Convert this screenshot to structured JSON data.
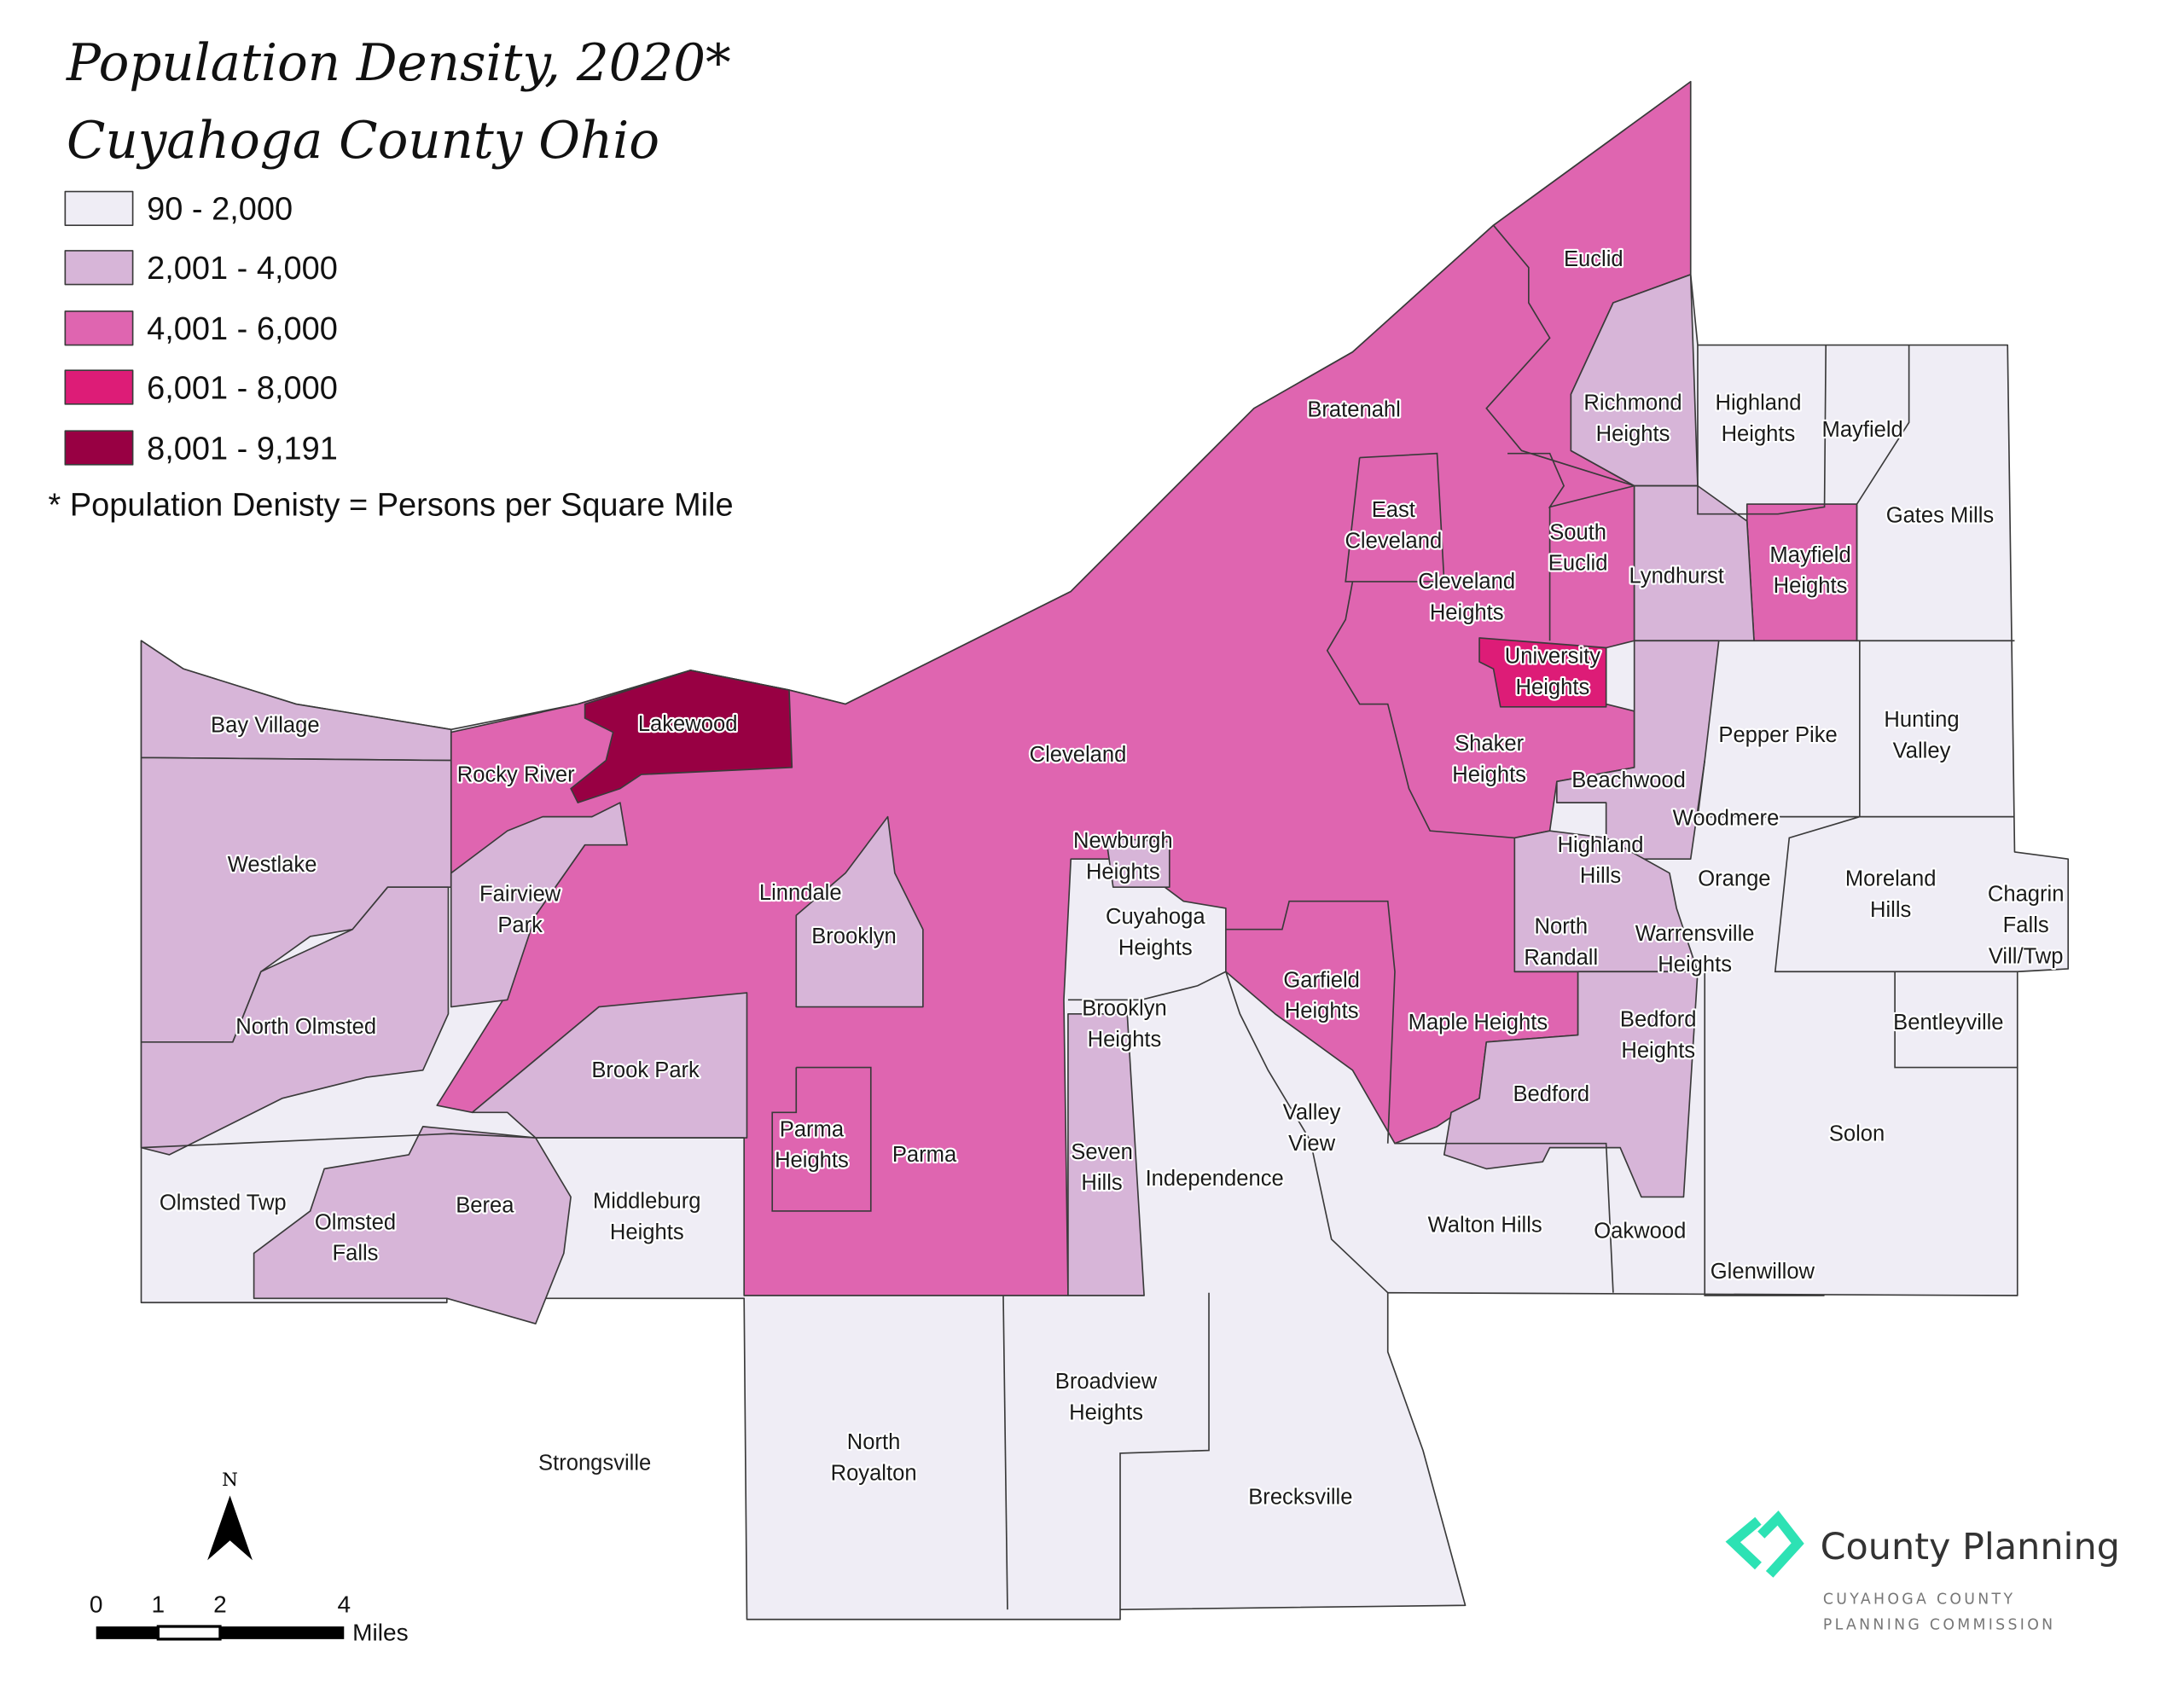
{
  "title": "Population Density, 2020*",
  "subtitle": "Cuyahoga County Ohio",
  "legend": {
    "items": [
      {
        "label": "90 - 2,000",
        "color": "#efedf5"
      },
      {
        "label": "2,001 - 4,000",
        "color": "#d7b5d8"
      },
      {
        "label": "4,001 - 6,000",
        "color": "#df65b0"
      },
      {
        "label": "6,001 - 8,000",
        "color": "#dd1c77"
      },
      {
        "label": "8,001 - 9,191",
        "color": "#980043"
      }
    ],
    "footnote": "* Population Denisty = Persons per Square Mile"
  },
  "municipalities": [
    {
      "lines": [
        "Euclid"
      ],
      "class": "4,001 - 6,000"
    },
    {
      "lines": [
        "Bratenahl"
      ],
      "class": "90 - 2,000"
    },
    {
      "lines": [
        "Richmond",
        "Heights"
      ],
      "class": "2,001 - 4,000"
    },
    {
      "lines": [
        "Highland",
        "Heights"
      ],
      "class": "90 - 2,000"
    },
    {
      "lines": [
        "Mayfield"
      ],
      "class": "90 - 2,000"
    },
    {
      "lines": [
        "East",
        "Cleveland"
      ],
      "class": "4,001 - 6,000"
    },
    {
      "lines": [
        "South",
        "Euclid"
      ],
      "class": "4,001 - 6,000"
    },
    {
      "lines": [
        "Gates Mills"
      ],
      "class": "90 - 2,000"
    },
    {
      "lines": [
        "Lyndhurst"
      ],
      "class": "2,001 - 4,000"
    },
    {
      "lines": [
        "Mayfield",
        "Heights"
      ],
      "class": "4,001 - 6,000"
    },
    {
      "lines": [
        "Cleveland",
        "Heights"
      ],
      "class": "4,001 - 6,000"
    },
    {
      "lines": [
        "University",
        "Heights"
      ],
      "class": "6,001 - 8,000"
    },
    {
      "lines": [
        "Bay Village"
      ],
      "class": "2,001 - 4,000"
    },
    {
      "lines": [
        "Lakewood"
      ],
      "class": "8,001 - 9,191"
    },
    {
      "lines": [
        "Cleveland"
      ],
      "class": "4,001 - 6,000"
    },
    {
      "lines": [
        "Shaker",
        "Heights"
      ],
      "class": "4,001 - 6,000"
    },
    {
      "lines": [
        "Pepper Pike"
      ],
      "class": "90 - 2,000"
    },
    {
      "lines": [
        "Hunting",
        "Valley"
      ],
      "class": "90 - 2,000"
    },
    {
      "lines": [
        "Rocky River"
      ],
      "class": "4,001 - 6,000"
    },
    {
      "lines": [
        "Beachwood"
      ],
      "class": "2,001 - 4,000"
    },
    {
      "lines": [
        "Woodmere"
      ],
      "class": "2,001 - 4,000"
    },
    {
      "lines": [
        "Westlake"
      ],
      "class": "2,001 - 4,000"
    },
    {
      "lines": [
        "Newburgh",
        "Heights"
      ],
      "class": "2,001 - 4,000"
    },
    {
      "lines": [
        "Highland",
        "Hills"
      ],
      "class": "2,001 - 4,000"
    },
    {
      "lines": [
        "Orange"
      ],
      "class": "90 - 2,000"
    },
    {
      "lines": [
        "Moreland",
        "Hills"
      ],
      "class": "90 - 2,000"
    },
    {
      "lines": [
        "Chagrin",
        "Falls",
        "Vill/Twp"
      ],
      "class": "90 - 2,000"
    },
    {
      "lines": [
        "Fairview",
        "Park"
      ],
      "class": "2,001 - 4,000"
    },
    {
      "lines": [
        "Linndale"
      ],
      "class": "4,001 - 6,000"
    },
    {
      "lines": [
        "Brooklyn"
      ],
      "class": "2,001 - 4,000"
    },
    {
      "lines": [
        "Cuyahoga",
        "Heights"
      ],
      "class": "90 - 2,000"
    },
    {
      "lines": [
        "North",
        "Randall"
      ],
      "class": "2,001 - 4,000"
    },
    {
      "lines": [
        "Warrensville",
        "Heights"
      ],
      "class": "2,001 - 4,000"
    },
    {
      "lines": [
        "Garfield",
        "Heights"
      ],
      "class": "4,001 - 6,000"
    },
    {
      "lines": [
        "North Olmsted"
      ],
      "class": "2,001 - 4,000"
    },
    {
      "lines": [
        "Maple Heights"
      ],
      "class": "4,001 - 6,000"
    },
    {
      "lines": [
        "Bentleyville"
      ],
      "class": "90 - 2,000"
    },
    {
      "lines": [
        "Bedford",
        "Heights"
      ],
      "class": "2,001 - 4,000"
    },
    {
      "lines": [
        "Brooklyn",
        "Heights"
      ],
      "class": "90 - 2,000"
    },
    {
      "lines": [
        "Brook Park"
      ],
      "class": "2,001 - 4,000"
    },
    {
      "lines": [
        "Bedford"
      ],
      "class": "2,001 - 4,000"
    },
    {
      "lines": [
        "Valley",
        "View"
      ],
      "class": "90 - 2,000"
    },
    {
      "lines": [
        "Parma",
        "Heights"
      ],
      "class": "4,001 - 6,000"
    },
    {
      "lines": [
        "Parma"
      ],
      "class": "4,001 - 6,000"
    },
    {
      "lines": [
        "Seven",
        "Hills"
      ],
      "class": "2,001 - 4,000"
    },
    {
      "lines": [
        "Independence"
      ],
      "class": "90 - 2,000"
    },
    {
      "lines": [
        "Solon"
      ],
      "class": "90 - 2,000"
    },
    {
      "lines": [
        "Olmsted Twp"
      ],
      "class": "90 - 2,000"
    },
    {
      "lines": [
        "Olmsted",
        "Falls"
      ],
      "class": "2,001 - 4,000"
    },
    {
      "lines": [
        "Berea"
      ],
      "class": "2,001 - 4,000"
    },
    {
      "lines": [
        "Middleburg",
        "Heights"
      ],
      "class": "90 - 2,000"
    },
    {
      "lines": [
        "Walton Hills"
      ],
      "class": "90 - 2,000"
    },
    {
      "lines": [
        "Oakwood"
      ],
      "class": "90 - 2,000"
    },
    {
      "lines": [
        "Glenwillow"
      ],
      "class": "90 - 2,000"
    },
    {
      "lines": [
        "Broadview",
        "Heights"
      ],
      "class": "90 - 2,000"
    },
    {
      "lines": [
        "North",
        "Royalton"
      ],
      "class": "90 - 2,000"
    },
    {
      "lines": [
        "Strongsville"
      ],
      "class": "90 - 2,000"
    },
    {
      "lines": [
        "Brecksville"
      ],
      "class": "90 - 2,000"
    }
  ],
  "north_arrow": {
    "label": "N",
    "icon": "north-arrow-icon"
  },
  "scale_bar": {
    "ticks": [
      "0",
      "1",
      "2",
      "4"
    ],
    "unit": "Miles"
  },
  "logo": {
    "name": "County Planning",
    "line1": "CUYAHOGA COUNTY",
    "line2": "PLANNING COMMISSION",
    "color": "#2de2b4"
  }
}
